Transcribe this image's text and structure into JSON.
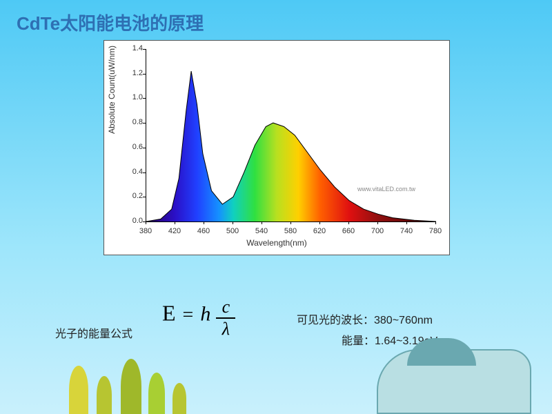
{
  "title": {
    "text": "CdTe太阳能电池的原理",
    "color": "#2e6fb3",
    "fontsize": 26
  },
  "chart": {
    "type": "area-spectrum",
    "background_color": "#ffffff",
    "border_color": "#555555",
    "xlabel": "Wavelength(nm)",
    "ylabel": "Absolute Count(uW/nm)",
    "label_fontsize": 12,
    "tick_fontsize": 11,
    "xlim": [
      380,
      780
    ],
    "xtick_step": 40,
    "ylim": [
      0,
      1.4
    ],
    "ytick_step": 0.2,
    "line_color": "#000000",
    "line_width": 1,
    "watermark": "www.vitaLED.com.tw",
    "spectrum_stops": [
      {
        "wl": 380,
        "color": "#2a0060"
      },
      {
        "wl": 420,
        "color": "#2a10c8"
      },
      {
        "wl": 450,
        "color": "#2040ff"
      },
      {
        "wl": 480,
        "color": "#1590ff"
      },
      {
        "wl": 500,
        "color": "#10d0c0"
      },
      {
        "wl": 530,
        "color": "#30e040"
      },
      {
        "wl": 560,
        "color": "#b8e020"
      },
      {
        "wl": 590,
        "color": "#ffd000"
      },
      {
        "wl": 620,
        "color": "#ff6000"
      },
      {
        "wl": 660,
        "color": "#e01010"
      },
      {
        "wl": 700,
        "color": "#901010"
      },
      {
        "wl": 780,
        "color": "#400000"
      }
    ],
    "curve": [
      {
        "x": 380,
        "y": 0.0
      },
      {
        "x": 400,
        "y": 0.02
      },
      {
        "x": 415,
        "y": 0.1
      },
      {
        "x": 425,
        "y": 0.35
      },
      {
        "x": 435,
        "y": 0.9
      },
      {
        "x": 442,
        "y": 1.22
      },
      {
        "x": 450,
        "y": 0.95
      },
      {
        "x": 458,
        "y": 0.55
      },
      {
        "x": 470,
        "y": 0.25
      },
      {
        "x": 485,
        "y": 0.14
      },
      {
        "x": 500,
        "y": 0.2
      },
      {
        "x": 515,
        "y": 0.4
      },
      {
        "x": 530,
        "y": 0.62
      },
      {
        "x": 545,
        "y": 0.77
      },
      {
        "x": 555,
        "y": 0.8
      },
      {
        "x": 570,
        "y": 0.77
      },
      {
        "x": 585,
        "y": 0.7
      },
      {
        "x": 600,
        "y": 0.58
      },
      {
        "x": 620,
        "y": 0.42
      },
      {
        "x": 640,
        "y": 0.28
      },
      {
        "x": 660,
        "y": 0.17
      },
      {
        "x": 680,
        "y": 0.1
      },
      {
        "x": 700,
        "y": 0.06
      },
      {
        "x": 720,
        "y": 0.03
      },
      {
        "x": 750,
        "y": 0.01
      },
      {
        "x": 780,
        "y": 0.0
      }
    ]
  },
  "formula_label": "光子的能量公式",
  "formula": {
    "E": "E",
    "eq": "=",
    "h": "h",
    "c": "c",
    "over": "──",
    "lambda": "λ",
    "fontsize": 30,
    "color": "#000000"
  },
  "info_wavelength": "可见光的波长：380~760nm",
  "info_energy": "能量：1.64~3.19eV",
  "decor": {
    "hill_colors": [
      "#d8d43a",
      "#b7c531",
      "#9fb82a",
      "#a8cf33"
    ],
    "building_color": "#b9dfe3",
    "roof_color": "#6aa8b0"
  }
}
